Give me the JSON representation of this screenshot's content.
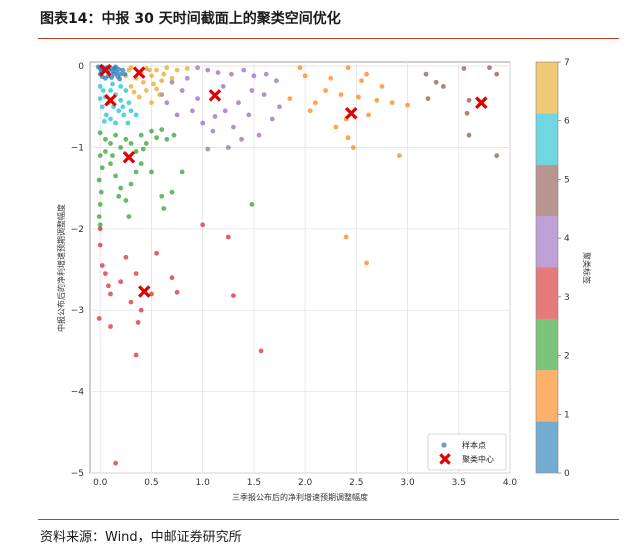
{
  "header": {
    "title": "图表14：中报 30 天时间截面上的聚类空间优化"
  },
  "footer": {
    "source": "资料来源：Wind，中邮证券研究所"
  },
  "colors": {
    "rule": "#c0392b",
    "center": "#e00000",
    "clusters": [
      "#1f77b4",
      "#ff7f0e",
      "#2ca02c",
      "#d62728",
      "#9467bd",
      "#8c564b",
      "#17becf",
      "#e5a820"
    ]
  },
  "chart_data": {
    "type": "scatter",
    "xlabel": "三季报公布后的净利增速预期调整幅度",
    "ylabel": "中报公布后的净利增速预期调整幅度",
    "xlim": [
      -0.1,
      4.0
    ],
    "ylim": [
      -5.0,
      0.05
    ],
    "xticks": [
      "0.0",
      "0.5",
      "1.0",
      "1.5",
      "2.0",
      "2.5",
      "3.0",
      "3.5",
      "4.0"
    ],
    "yticks": [
      "0",
      "−1",
      "−2",
      "−3",
      "−4",
      "−5"
    ],
    "grid": true,
    "legend": {
      "position": "bottom-right",
      "entries": [
        "样本点",
        "聚类中心"
      ]
    },
    "colorbar": {
      "label": "聚类标签",
      "ticks": [
        "0",
        "1",
        "2",
        "3",
        "4",
        "5",
        "6",
        "7"
      ],
      "range": [
        0,
        7
      ]
    },
    "centers": [
      {
        "cluster": 0,
        "x": 0.05,
        "y": -0.05
      },
      {
        "cluster": 7,
        "x": 0.38,
        "y": -0.08
      },
      {
        "cluster": 6,
        "x": 0.1,
        "y": -0.42
      },
      {
        "cluster": 4,
        "x": 1.12,
        "y": -0.36
      },
      {
        "cluster": 1,
        "x": 2.45,
        "y": -0.58
      },
      {
        "cluster": 5,
        "x": 3.72,
        "y": -0.45
      },
      {
        "cluster": 2,
        "x": 0.28,
        "y": -1.12
      },
      {
        "cluster": 3,
        "x": 0.43,
        "y": -2.77
      }
    ],
    "points": [
      {
        "c": 1,
        "x": 1.95,
        "y": -0.02
      },
      {
        "c": 1,
        "x": 2.42,
        "y": -0.02
      },
      {
        "c": 1,
        "x": 2.0,
        "y": -0.12
      },
      {
        "c": 1,
        "x": 2.25,
        "y": -0.15
      },
      {
        "c": 1,
        "x": 2.55,
        "y": -0.18
      },
      {
        "c": 1,
        "x": 2.6,
        "y": -0.1
      },
      {
        "c": 1,
        "x": 2.35,
        "y": -0.35
      },
      {
        "c": 1,
        "x": 2.7,
        "y": -0.42
      },
      {
        "c": 1,
        "x": 2.85,
        "y": -0.45
      },
      {
        "c": 1,
        "x": 3.0,
        "y": -0.48
      },
      {
        "c": 1,
        "x": 2.4,
        "y": -0.65
      },
      {
        "c": 1,
        "x": 2.62,
        "y": -0.6
      },
      {
        "c": 1,
        "x": 2.3,
        "y": -0.75
      },
      {
        "c": 1,
        "x": 2.42,
        "y": -0.88
      },
      {
        "c": 1,
        "x": 2.47,
        "y": -1.0
      },
      {
        "c": 1,
        "x": 2.92,
        "y": -1.1
      },
      {
        "c": 1,
        "x": 2.05,
        "y": -0.55
      },
      {
        "c": 1,
        "x": 2.2,
        "y": -0.3
      },
      {
        "c": 1,
        "x": 2.75,
        "y": -0.25
      },
      {
        "c": 1,
        "x": 1.85,
        "y": -0.4
      },
      {
        "c": 1,
        "x": 2.4,
        "y": -2.1
      },
      {
        "c": 1,
        "x": 2.6,
        "y": -2.42
      },
      {
        "c": 1,
        "x": 2.1,
        "y": -0.45
      },
      {
        "c": 1,
        "x": 2.52,
        "y": -0.38
      },
      {
        "c": 5,
        "x": 3.18,
        "y": -0.1
      },
      {
        "c": 5,
        "x": 3.28,
        "y": -0.2
      },
      {
        "c": 5,
        "x": 3.55,
        "y": -0.03
      },
      {
        "c": 5,
        "x": 3.8,
        "y": -0.02
      },
      {
        "c": 5,
        "x": 3.87,
        "y": -0.1
      },
      {
        "c": 5,
        "x": 3.2,
        "y": -0.4
      },
      {
        "c": 5,
        "x": 3.35,
        "y": -0.25
      },
      {
        "c": 5,
        "x": 3.6,
        "y": -0.42
      },
      {
        "c": 5,
        "x": 3.58,
        "y": -0.58
      },
      {
        "c": 5,
        "x": 3.6,
        "y": -0.85
      },
      {
        "c": 5,
        "x": 3.87,
        "y": -1.1
      },
      {
        "c": 4,
        "x": 0.95,
        "y": -0.02
      },
      {
        "c": 4,
        "x": 1.05,
        "y": -0.05
      },
      {
        "c": 4,
        "x": 1.15,
        "y": -0.08
      },
      {
        "c": 4,
        "x": 1.28,
        "y": -0.1
      },
      {
        "c": 4,
        "x": 1.4,
        "y": -0.05
      },
      {
        "c": 4,
        "x": 1.5,
        "y": -0.12
      },
      {
        "c": 4,
        "x": 1.62,
        "y": -0.1
      },
      {
        "c": 4,
        "x": 1.72,
        "y": -0.18
      },
      {
        "c": 4,
        "x": 0.7,
        "y": -0.2
      },
      {
        "c": 4,
        "x": 0.8,
        "y": -0.3
      },
      {
        "c": 4,
        "x": 0.65,
        "y": -0.45
      },
      {
        "c": 4,
        "x": 0.9,
        "y": -0.55
      },
      {
        "c": 4,
        "x": 0.95,
        "y": -0.4
      },
      {
        "c": 4,
        "x": 1.0,
        "y": -0.7
      },
      {
        "c": 4,
        "x": 1.1,
        "y": -0.8
      },
      {
        "c": 4,
        "x": 1.22,
        "y": -0.55
      },
      {
        "c": 4,
        "x": 1.3,
        "y": -0.75
      },
      {
        "c": 4,
        "x": 1.35,
        "y": -0.45
      },
      {
        "c": 4,
        "x": 1.45,
        "y": -0.6
      },
      {
        "c": 4,
        "x": 1.55,
        "y": -0.85
      },
      {
        "c": 4,
        "x": 1.6,
        "y": -0.35
      },
      {
        "c": 4,
        "x": 1.75,
        "y": -0.5
      },
      {
        "c": 4,
        "x": 1.25,
        "y": -1.0
      },
      {
        "c": 4,
        "x": 1.05,
        "y": -1.02
      },
      {
        "c": 4,
        "x": 0.85,
        "y": -0.15
      },
      {
        "c": 4,
        "x": 0.75,
        "y": -0.6
      },
      {
        "c": 4,
        "x": 1.2,
        "y": -0.25
      },
      {
        "c": 4,
        "x": 1.38,
        "y": -0.9
      },
      {
        "c": 4,
        "x": 1.48,
        "y": -0.3
      },
      {
        "c": 4,
        "x": 0.6,
        "y": -0.35
      },
      {
        "c": 4,
        "x": 1.68,
        "y": -0.65
      },
      {
        "c": 4,
        "x": 1.12,
        "y": -0.62
      },
      {
        "c": 7,
        "x": 0.3,
        "y": -0.02
      },
      {
        "c": 7,
        "x": 0.45,
        "y": -0.03
      },
      {
        "c": 7,
        "x": 0.55,
        "y": -0.05
      },
      {
        "c": 7,
        "x": 0.65,
        "y": -0.02
      },
      {
        "c": 7,
        "x": 0.75,
        "y": -0.05
      },
      {
        "c": 7,
        "x": 0.85,
        "y": -0.03
      },
      {
        "c": 7,
        "x": 0.25,
        "y": -0.12
      },
      {
        "c": 7,
        "x": 0.35,
        "y": -0.15
      },
      {
        "c": 7,
        "x": 0.42,
        "y": -0.2
      },
      {
        "c": 7,
        "x": 0.5,
        "y": -0.12
      },
      {
        "c": 7,
        "x": 0.6,
        "y": -0.18
      },
      {
        "c": 7,
        "x": 0.3,
        "y": -0.25
      },
      {
        "c": 7,
        "x": 0.45,
        "y": -0.3
      },
      {
        "c": 7,
        "x": 0.55,
        "y": -0.28
      },
      {
        "c": 7,
        "x": 0.38,
        "y": -0.38
      },
      {
        "c": 7,
        "x": 0.5,
        "y": -0.45
      },
      {
        "c": 7,
        "x": 0.62,
        "y": -0.1
      },
      {
        "c": 7,
        "x": 0.7,
        "y": -0.15
      },
      {
        "c": 7,
        "x": 0.4,
        "y": -0.08
      },
      {
        "c": 7,
        "x": 0.28,
        "y": -0.05
      },
      {
        "c": 7,
        "x": 0.48,
        "y": -0.05
      },
      {
        "c": 7,
        "x": 0.58,
        "y": -0.35
      },
      {
        "c": 7,
        "x": 0.33,
        "y": -0.32
      },
      {
        "c": 7,
        "x": 0.52,
        "y": -0.22
      },
      {
        "c": 0,
        "x": -0.02,
        "y": -0.01
      },
      {
        "c": 0,
        "x": 0.0,
        "y": -0.03
      },
      {
        "c": 0,
        "x": 0.02,
        "y": -0.01
      },
      {
        "c": 0,
        "x": 0.04,
        "y": -0.04
      },
      {
        "c": 0,
        "x": 0.06,
        "y": -0.02
      },
      {
        "c": 0,
        "x": 0.08,
        "y": -0.05
      },
      {
        "c": 0,
        "x": 0.1,
        "y": -0.02
      },
      {
        "c": 0,
        "x": 0.12,
        "y": -0.06
      },
      {
        "c": 0,
        "x": 0.14,
        "y": -0.03
      },
      {
        "c": 0,
        "x": 0.16,
        "y": -0.08
      },
      {
        "c": 0,
        "x": 0.18,
        "y": -0.04
      },
      {
        "c": 0,
        "x": 0.2,
        "y": -0.1
      },
      {
        "c": 0,
        "x": 0.0,
        "y": -0.1
      },
      {
        "c": 0,
        "x": 0.02,
        "y": -0.13
      },
      {
        "c": 0,
        "x": 0.05,
        "y": -0.15
      },
      {
        "c": 0,
        "x": 0.08,
        "y": -0.12
      },
      {
        "c": 0,
        "x": 0.11,
        "y": -0.14
      },
      {
        "c": 0,
        "x": 0.13,
        "y": -0.1
      },
      {
        "c": 0,
        "x": 0.17,
        "y": -0.13
      },
      {
        "c": 0,
        "x": 0.19,
        "y": -0.16
      },
      {
        "c": 0,
        "x": 0.22,
        "y": -0.05
      },
      {
        "c": 0,
        "x": 0.24,
        "y": -0.1
      },
      {
        "c": 0,
        "x": 0.01,
        "y": -0.06
      },
      {
        "c": 0,
        "x": 0.15,
        "y": -0.01
      },
      {
        "c": 6,
        "x": 0.0,
        "y": -0.25
      },
      {
        "c": 6,
        "x": 0.03,
        "y": -0.3
      },
      {
        "c": 6,
        "x": 0.05,
        "y": -0.38
      },
      {
        "c": 6,
        "x": 0.08,
        "y": -0.45
      },
      {
        "c": 6,
        "x": 0.1,
        "y": -0.3
      },
      {
        "c": 6,
        "x": 0.13,
        "y": -0.5
      },
      {
        "c": 6,
        "x": 0.15,
        "y": -0.35
      },
      {
        "c": 6,
        "x": 0.18,
        "y": -0.55
      },
      {
        "c": 6,
        "x": 0.2,
        "y": -0.42
      },
      {
        "c": 6,
        "x": 0.23,
        "y": -0.6
      },
      {
        "c": 6,
        "x": 0.25,
        "y": -0.3
      },
      {
        "c": 6,
        "x": 0.02,
        "y": -0.5
      },
      {
        "c": 6,
        "x": 0.06,
        "y": -0.6
      },
      {
        "c": 6,
        "x": 0.1,
        "y": -0.65
      },
      {
        "c": 6,
        "x": 0.15,
        "y": -0.7
      },
      {
        "c": 6,
        "x": 0.2,
        "y": -0.25
      },
      {
        "c": 6,
        "x": 0.28,
        "y": -0.45
      },
      {
        "c": 6,
        "x": 0.3,
        "y": -0.55
      },
      {
        "c": 6,
        "x": 0.35,
        "y": -0.6
      },
      {
        "c": 6,
        "x": 0.27,
        "y": -0.7
      },
      {
        "c": 6,
        "x": 0.0,
        "y": -0.4
      },
      {
        "c": 6,
        "x": 0.12,
        "y": -0.22
      },
      {
        "c": 6,
        "x": 0.22,
        "y": -0.5
      },
      {
        "c": 6,
        "x": 0.04,
        "y": -0.68
      },
      {
        "c": 2,
        "x": 0.0,
        "y": -0.82
      },
      {
        "c": 2,
        "x": 0.05,
        "y": -0.9
      },
      {
        "c": 2,
        "x": 0.1,
        "y": -0.95
      },
      {
        "c": 2,
        "x": 0.15,
        "y": -0.85
      },
      {
        "c": 2,
        "x": 0.2,
        "y": -1.0
      },
      {
        "c": 2,
        "x": 0.25,
        "y": -0.9
      },
      {
        "c": 2,
        "x": 0.3,
        "y": -0.95
      },
      {
        "c": 2,
        "x": 0.35,
        "y": -1.05
      },
      {
        "c": 2,
        "x": 0.4,
        "y": -0.85
      },
      {
        "c": 2,
        "x": 0.45,
        "y": -0.95
      },
      {
        "c": 2,
        "x": 0.5,
        "y": -0.8
      },
      {
        "c": 2,
        "x": 0.55,
        "y": -0.88
      },
      {
        "c": 2,
        "x": 0.6,
        "y": -0.78
      },
      {
        "c": 2,
        "x": 0.65,
        "y": -0.9
      },
      {
        "c": 2,
        "x": 0.72,
        "y": -0.85
      },
      {
        "c": 2,
        "x": 0.0,
        "y": -1.1
      },
      {
        "c": 2,
        "x": 0.02,
        "y": -1.25
      },
      {
        "c": 2,
        "x": -0.01,
        "y": -1.4
      },
      {
        "c": 2,
        "x": 0.01,
        "y": -1.55
      },
      {
        "c": 2,
        "x": 0.0,
        "y": -1.7
      },
      {
        "c": 2,
        "x": -0.01,
        "y": -1.85
      },
      {
        "c": 2,
        "x": 0.0,
        "y": -1.95
      },
      {
        "c": 2,
        "x": 0.1,
        "y": -1.2
      },
      {
        "c": 2,
        "x": 0.15,
        "y": -1.35
      },
      {
        "c": 2,
        "x": 0.2,
        "y": -1.5
      },
      {
        "c": 2,
        "x": 0.25,
        "y": -1.65
      },
      {
        "c": 2,
        "x": 0.3,
        "y": -1.45
      },
      {
        "c": 2,
        "x": 0.35,
        "y": -1.3
      },
      {
        "c": 2,
        "x": 0.4,
        "y": -1.2
      },
      {
        "c": 2,
        "x": 0.5,
        "y": -1.3
      },
      {
        "c": 2,
        "x": 0.6,
        "y": -1.6
      },
      {
        "c": 2,
        "x": 0.7,
        "y": -1.55
      },
      {
        "c": 2,
        "x": 0.8,
        "y": -1.3
      },
      {
        "c": 2,
        "x": 0.62,
        "y": -1.75
      },
      {
        "c": 2,
        "x": 0.28,
        "y": -1.85
      },
      {
        "c": 2,
        "x": 1.48,
        "y": -1.7
      },
      {
        "c": 2,
        "x": 0.05,
        "y": -1.05
      },
      {
        "c": 2,
        "x": 0.12,
        "y": -1.1
      },
      {
        "c": 2,
        "x": 0.42,
        "y": -1.02
      },
      {
        "c": 2,
        "x": 0.18,
        "y": -1.6
      },
      {
        "c": 3,
        "x": 0.0,
        "y": -2.2
      },
      {
        "c": 3,
        "x": 0.02,
        "y": -2.45
      },
      {
        "c": 3,
        "x": 0.05,
        "y": -2.55
      },
      {
        "c": 3,
        "x": 0.08,
        "y": -2.7
      },
      {
        "c": 3,
        "x": 0.1,
        "y": -2.8
      },
      {
        "c": 3,
        "x": 0.2,
        "y": -2.65
      },
      {
        "c": 3,
        "x": 0.25,
        "y": -2.35
      },
      {
        "c": 3,
        "x": 0.3,
        "y": -2.9
      },
      {
        "c": 3,
        "x": 0.35,
        "y": -2.55
      },
      {
        "c": 3,
        "x": 0.4,
        "y": -3.0
      },
      {
        "c": 3,
        "x": 0.5,
        "y": -2.8
      },
      {
        "c": 3,
        "x": 0.55,
        "y": -2.3
      },
      {
        "c": 3,
        "x": 0.7,
        "y": -2.6
      },
      {
        "c": 3,
        "x": 0.75,
        "y": -2.78
      },
      {
        "c": 3,
        "x": 1.0,
        "y": -1.95
      },
      {
        "c": 3,
        "x": 1.25,
        "y": -2.1
      },
      {
        "c": 3,
        "x": 1.3,
        "y": -2.82
      },
      {
        "c": 3,
        "x": 1.57,
        "y": -3.5
      },
      {
        "c": 3,
        "x": -0.01,
        "y": -3.1
      },
      {
        "c": 3,
        "x": 0.1,
        "y": -3.2
      },
      {
        "c": 3,
        "x": 0.37,
        "y": -3.15
      },
      {
        "c": 3,
        "x": 0.35,
        "y": -3.55
      },
      {
        "c": 3,
        "x": 0.15,
        "y": -4.88
      },
      {
        "c": 3,
        "x": 0.0,
        "y": -2.0
      }
    ]
  }
}
